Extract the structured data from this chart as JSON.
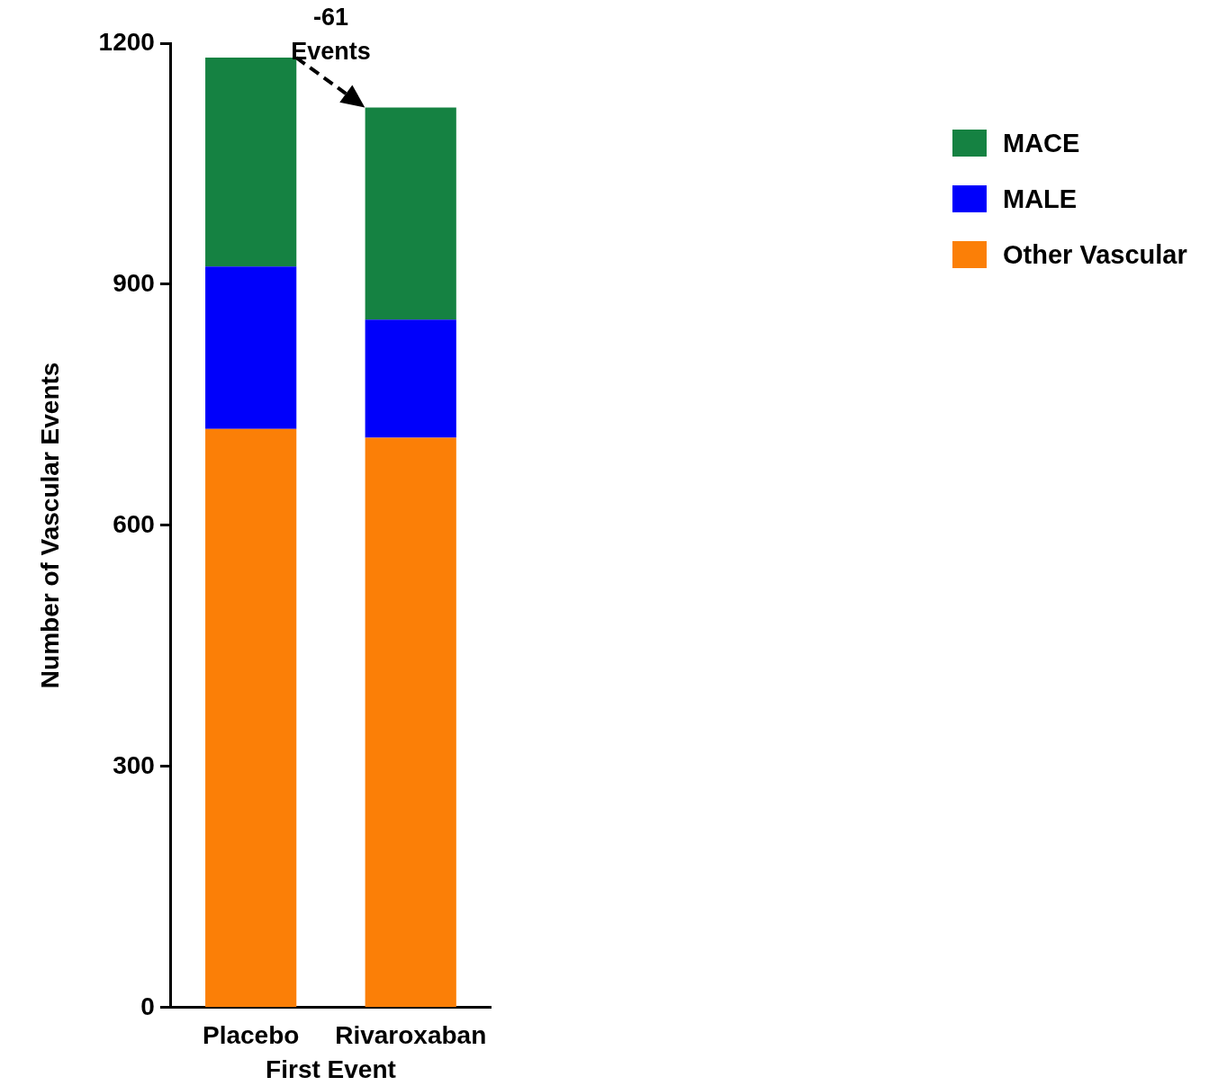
{
  "chart_data": {
    "type": "bar",
    "stacked": true,
    "xlabel": "First Event",
    "ylabel": "Number of Vascular Events",
    "categories": [
      "Placebo",
      "Rivaroxaban"
    ],
    "series": [
      {
        "name": "Other Vascular",
        "color": "#fb7f07",
        "values": [
          720,
          709
        ]
      },
      {
        "name": "MALE",
        "color": "#0000fb",
        "values": [
          202,
          147
        ]
      },
      {
        "name": "MACE",
        "color": "#158242",
        "values": [
          260,
          264
        ]
      }
    ],
    "ylim": [
      0,
      1200
    ],
    "yticks": [
      0,
      300,
      600,
      900,
      1200
    ],
    "grid": false,
    "legend": "top right",
    "annotations": [
      "-61 Events"
    ]
  }
}
